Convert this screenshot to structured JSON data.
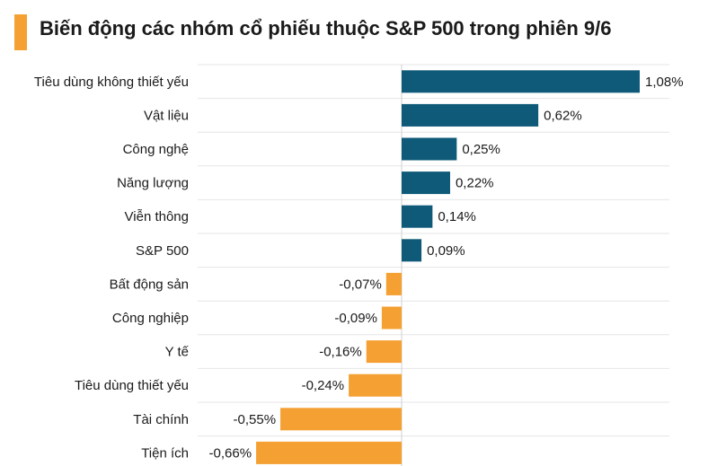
{
  "title": "Biến động các nhóm cổ phiếu thuộc S&P 500 trong phiên 9/6",
  "colors": {
    "positive": "#0f5a78",
    "negative": "#f5a033",
    "accent": "#f5a033"
  },
  "chart_data": {
    "type": "bar",
    "orientation": "horizontal",
    "title": "Biến động các nhóm cổ phiếu thuộc S&P 500 trong phiên 9/6",
    "categories": [
      "Tiêu dùng không thiết yếu",
      "Vật liệu",
      "Công nghệ",
      "Năng lượng",
      "Viễn thông",
      "S&P 500",
      "Bất động sản",
      "Công nghiệp",
      "Y tế",
      "Tiêu dùng thiết yếu",
      "Tài chính",
      "Tiện ích"
    ],
    "values": [
      1.08,
      0.62,
      0.25,
      0.22,
      0.14,
      0.09,
      -0.07,
      -0.09,
      -0.16,
      -0.24,
      -0.55,
      -0.66
    ],
    "value_labels": [
      "1,08%",
      "0,62%",
      "0,25%",
      "0,22%",
      "0,14%",
      "0,09%",
      "-0,07%",
      "-0,09%",
      "-0,16%",
      "-0,24%",
      "-0,55%",
      "-0,66%"
    ],
    "xlim": [
      -0.79,
      1.08
    ],
    "grid": true,
    "xlabel": "",
    "ylabel": ""
  }
}
